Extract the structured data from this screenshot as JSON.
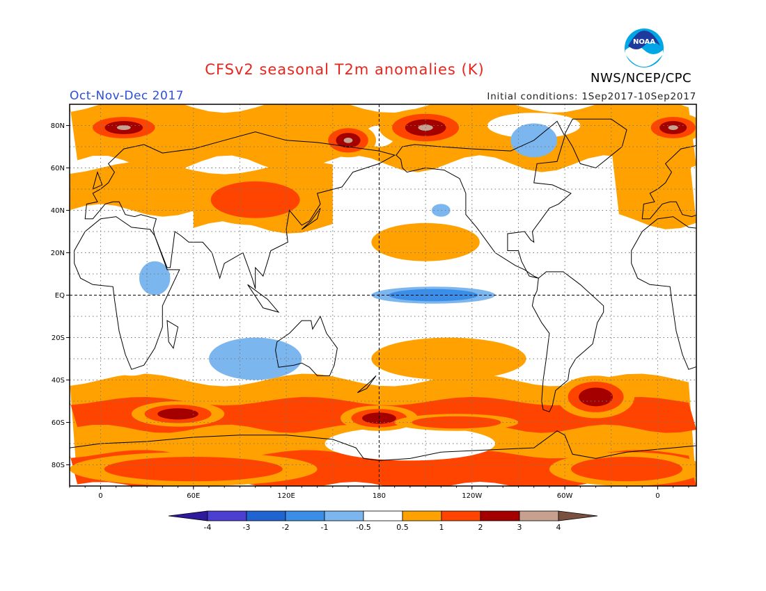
{
  "header": {
    "title": "CFSv2 seasonal T2m anomalies (K)",
    "org": "NWS/NCEP/CPC",
    "season": "Oct-Nov-Dec 2017",
    "initial_conditions": "Initial conditions: 1Sep2017-10Sep2017",
    "logo_text": "NOAA"
  },
  "axes": {
    "x_ticks": [
      {
        "lon": 0,
        "label": "0"
      },
      {
        "lon": 60,
        "label": "60E"
      },
      {
        "lon": 120,
        "label": "120E"
      },
      {
        "lon": 180,
        "label": "180"
      },
      {
        "lon": 240,
        "label": "120W"
      },
      {
        "lon": 300,
        "label": "60W"
      },
      {
        "lon": 360,
        "label": "0"
      }
    ],
    "y_ticks": [
      {
        "lat": 80,
        "label": "80N"
      },
      {
        "lat": 60,
        "label": "60N"
      },
      {
        "lat": 40,
        "label": "40N"
      },
      {
        "lat": 20,
        "label": "20N"
      },
      {
        "lat": 0,
        "label": "EQ"
      },
      {
        "lat": -20,
        "label": "20S"
      },
      {
        "lat": -40,
        "label": "40S"
      },
      {
        "lat": -60,
        "label": "60S"
      },
      {
        "lat": -80,
        "label": "80S"
      }
    ],
    "lon_range": [
      -20,
      385
    ],
    "lat_range": [
      -90,
      90
    ]
  },
  "colorbar": {
    "bins": [
      {
        "color": "#2d1a9c"
      },
      {
        "color": "#4a3fd0"
      },
      {
        "color": "#1f64d0"
      },
      {
        "color": "#3a8ee8"
      },
      {
        "color": "#7bb6ef"
      },
      {
        "color": "#ffffff"
      },
      {
        "color": "#ffa100"
      },
      {
        "color": "#ff4400"
      },
      {
        "color": "#a40000"
      },
      {
        "color": "#c8a090"
      },
      {
        "color": "#7a5040"
      }
    ],
    "labels": [
      "-4",
      "-3",
      "-2",
      "-1",
      "-0.5",
      "0.5",
      "1",
      "2",
      "3",
      "4"
    ]
  },
  "chart_data": {
    "type": "heatmap",
    "title": "CFSv2 seasonal T2m anomalies (K)",
    "levels": [
      -4,
      -3,
      -2,
      -1,
      -0.5,
      0.5,
      1,
      2,
      3,
      4
    ],
    "colors": {
      "neg_strong": "#1f64d0",
      "neg_mid": "#3a8ee8",
      "neg_weak": "#7bb6ef",
      "pos_weak": "#ffa100",
      "pos_mid": "#ff4400",
      "pos_strong": "#a40000",
      "pos_extreme": "#c8a090"
    },
    "anomaly_regions": [
      {
        "lon": 15,
        "lat": 79,
        "rx": 28,
        "ry": 7,
        "value": 3.5
      },
      {
        "lon": 160,
        "lat": 73,
        "rx": 18,
        "ry": 8,
        "value": 3.0
      },
      {
        "lon": 210,
        "lat": 79,
        "rx": 30,
        "ry": 9,
        "value": 3.5
      },
      {
        "lon": 370,
        "lat": 79,
        "rx": 20,
        "ry": 7,
        "value": 3.5
      },
      {
        "lon": 100,
        "lat": 45,
        "rx": 40,
        "ry": 12,
        "value": 1.5
      },
      {
        "lon": 210,
        "lat": 25,
        "rx": 35,
        "ry": 9,
        "value": 0.8
      },
      {
        "lon": 215,
        "lat": 0,
        "rx": 40,
        "ry": 4,
        "value": -1.2
      },
      {
        "lon": 35,
        "lat": 8,
        "rx": 10,
        "ry": 8,
        "value": -0.8
      },
      {
        "lon": 225,
        "lat": -30,
        "rx": 50,
        "ry": 10,
        "value": 0.8
      },
      {
        "lon": 180,
        "lat": -58,
        "rx": 25,
        "ry": 6,
        "value": 2.5
      },
      {
        "lon": 50,
        "lat": -56,
        "rx": 30,
        "ry": 6,
        "value": 2.0
      },
      {
        "lon": 320,
        "lat": -48,
        "rx": 25,
        "ry": 10,
        "value": 2.0
      },
      {
        "lon": 230,
        "lat": -60,
        "rx": 40,
        "ry": 4,
        "value": 1.5
      },
      {
        "lon": 60,
        "lat": -82,
        "rx": 80,
        "ry": 8,
        "value": 1.5
      },
      {
        "lon": 340,
        "lat": -82,
        "rx": 50,
        "ry": 8,
        "value": 1.5
      },
      {
        "lon": 100,
        "lat": -30,
        "rx": 30,
        "ry": 10,
        "value": -0.7
      },
      {
        "lon": 220,
        "lat": 40,
        "rx": 6,
        "ry": 3,
        "value": -0.7
      },
      {
        "lon": 280,
        "lat": 73,
        "rx": 15,
        "ry": 8,
        "value": -0.8
      }
    ]
  }
}
